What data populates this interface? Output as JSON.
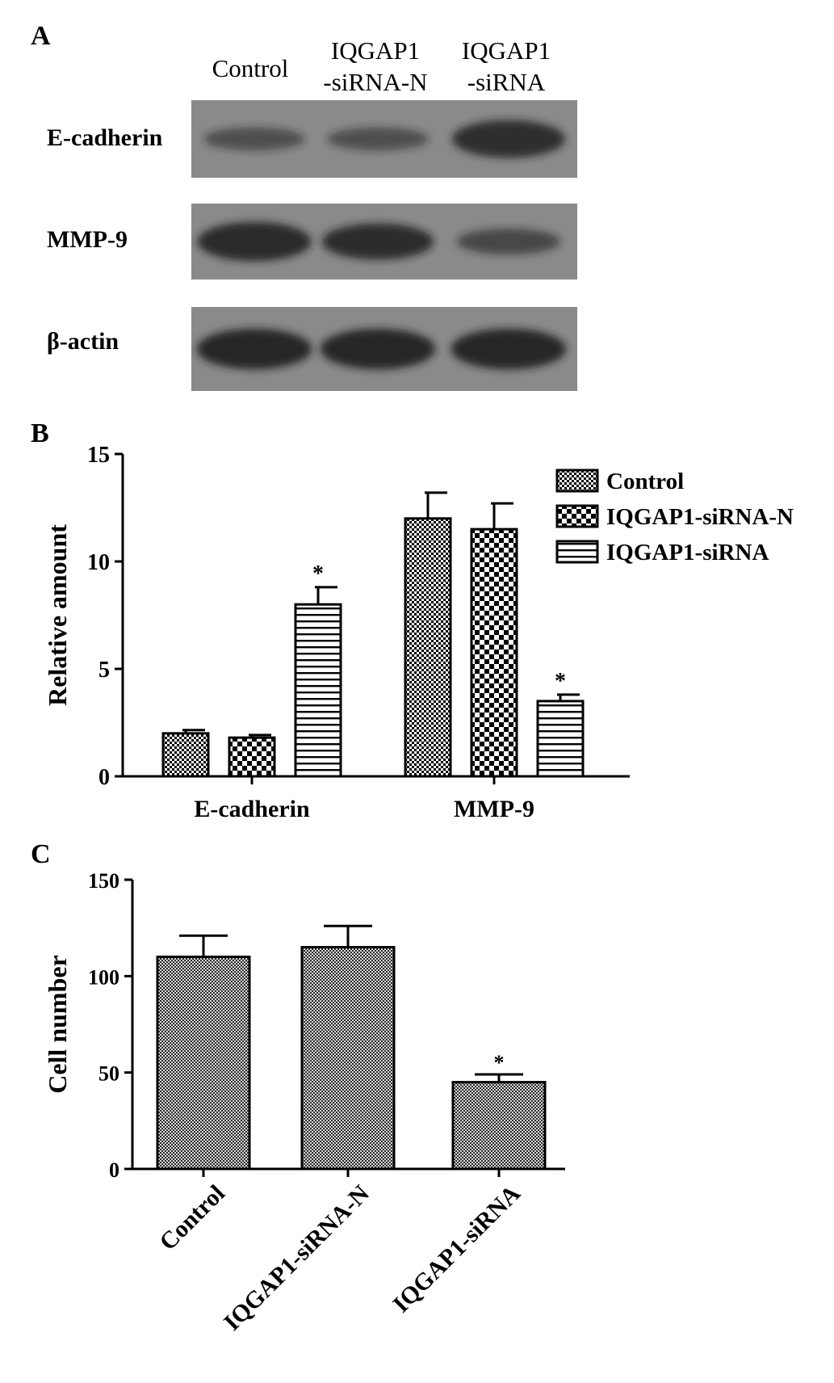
{
  "panels": {
    "a": {
      "label": "A"
    },
    "b": {
      "label": "B"
    },
    "c": {
      "label": "C"
    }
  },
  "blot": {
    "lanes": [
      {
        "line1": "Control",
        "line2": ""
      },
      {
        "line1": "IQGAP1",
        "line2": "-siRNA-N"
      },
      {
        "line1": "IQGAP1",
        "line2": "-siRNA"
      }
    ],
    "rows": [
      {
        "label": "E-cadherin",
        "band_intensity": [
          0.35,
          0.35,
          0.85
        ]
      },
      {
        "label": "MMP-9",
        "band_intensity": [
          0.9,
          0.8,
          0.45
        ]
      },
      {
        "label": "β-actin",
        "band_intensity": [
          0.95,
          0.95,
          0.95
        ]
      }
    ],
    "colors": {
      "membrane": "#8a8a8a",
      "band": "#1c1c1c"
    }
  },
  "chart_data": [
    {
      "type": "bar",
      "title": "",
      "xlabel": "",
      "ylabel": "Relative amount",
      "ylim": [
        0,
        15
      ],
      "yticks": [
        0,
        5,
        10,
        15
      ],
      "categories": [
        "E-cadherin",
        "MMP-9"
      ],
      "series": [
        {
          "name": "Control",
          "values": [
            2.0,
            12.0
          ],
          "errors": [
            0.15,
            1.2
          ],
          "pattern": "fine-check"
        },
        {
          "name": "IQGAP1-siRNA-N",
          "values": [
            1.8,
            11.5
          ],
          "errors": [
            0.12,
            1.2
          ],
          "pattern": "checker"
        },
        {
          "name": "IQGAP1-siRNA",
          "values": [
            8.0,
            3.5
          ],
          "errors": [
            0.8,
            0.3
          ],
          "pattern": "horizontal-lines"
        }
      ],
      "significance": [
        {
          "series": "IQGAP1-siRNA",
          "category": "E-cadherin",
          "mark": "*"
        },
        {
          "series": "IQGAP1-siRNA",
          "category": "MMP-9",
          "mark": "*"
        }
      ],
      "legend": "top-right",
      "grid": false
    },
    {
      "type": "bar",
      "title": "",
      "xlabel": "",
      "ylabel": "Cell number",
      "ylim": [
        0,
        150
      ],
      "yticks": [
        0,
        50,
        100,
        150
      ],
      "categories": [
        "Control",
        "IQGAP1-siRNA-N",
        "IQGAP1-siRNA"
      ],
      "values": [
        110,
        115,
        45
      ],
      "errors": [
        11,
        11,
        4
      ],
      "significance": [
        {
          "category": "IQGAP1-siRNA",
          "mark": "*"
        }
      ],
      "legend": "none",
      "grid": false
    }
  ]
}
